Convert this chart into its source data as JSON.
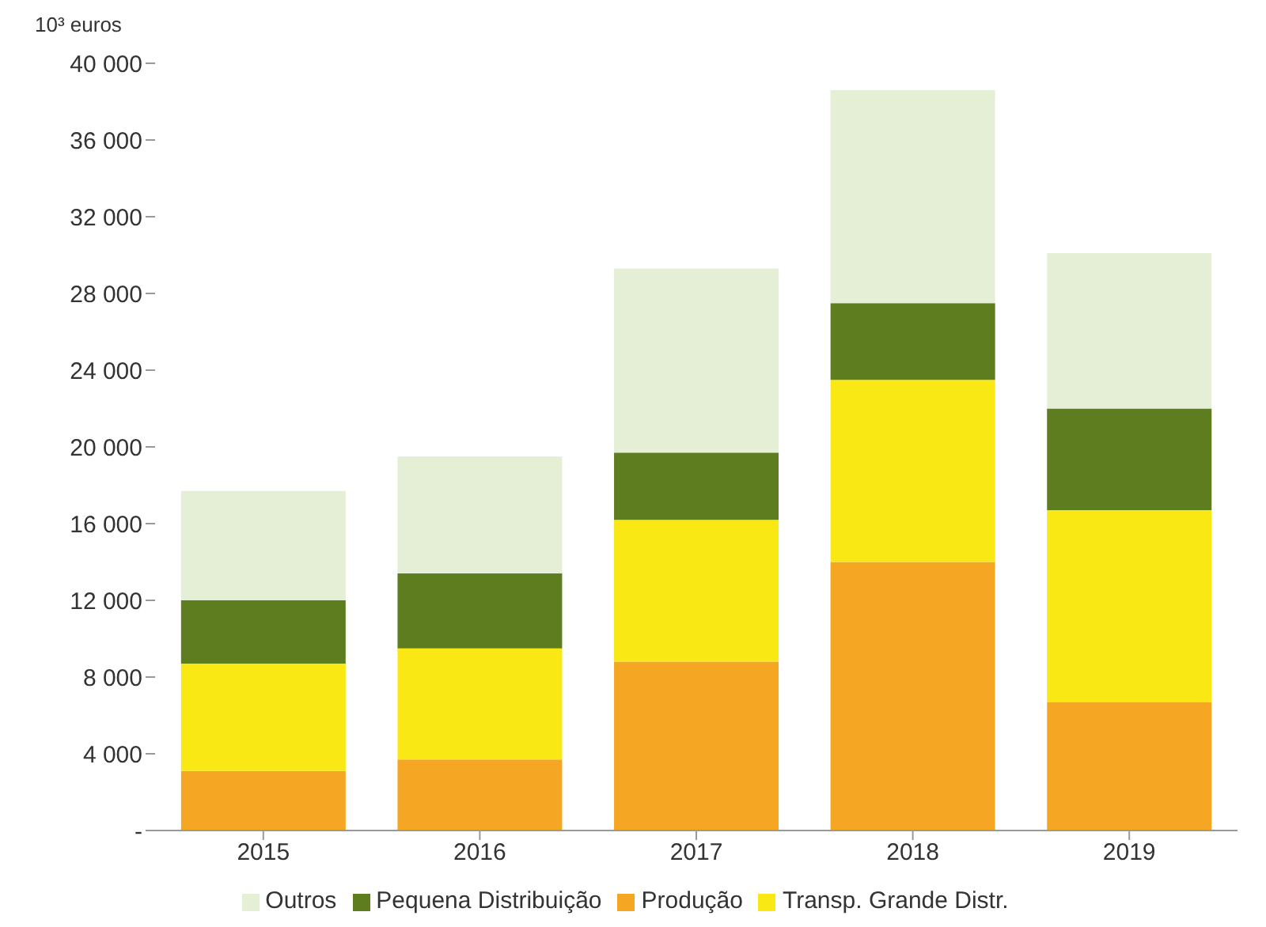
{
  "chart_data": {
    "type": "bar",
    "ylabel": "10³ euros",
    "categories": [
      "2015",
      "2016",
      "2017",
      "2018",
      "2019"
    ],
    "stacked": true,
    "series": [
      {
        "name": "Produção",
        "color": "#f5a623",
        "values": [
          3100,
          3700,
          8800,
          14000,
          6700
        ]
      },
      {
        "name": "Transp. Grande Distr.",
        "color": "#f9e814",
        "values": [
          5600,
          5800,
          7400,
          9500,
          10000
        ]
      },
      {
        "name": "Pequena Distribuição",
        "color": "#5e7d1e",
        "values": [
          3300,
          3900,
          3500,
          4000,
          5300
        ]
      },
      {
        "name": "Outros",
        "color": "#e5efd6",
        "values": [
          5700,
          6100,
          9600,
          11100,
          8100
        ]
      }
    ],
    "ylim": [
      0,
      40000
    ],
    "yticks": [
      {
        "value": 0,
        "label": "-"
      },
      {
        "value": 4000,
        "label": "4 000"
      },
      {
        "value": 8000,
        "label": "8 000"
      },
      {
        "value": 12000,
        "label": "12 000"
      },
      {
        "value": 16000,
        "label": "16 000"
      },
      {
        "value": 20000,
        "label": "20 000"
      },
      {
        "value": 24000,
        "label": "24 000"
      },
      {
        "value": 28000,
        "label": "28 000"
      },
      {
        "value": 32000,
        "label": "32 000"
      },
      {
        "value": 36000,
        "label": "36 000"
      },
      {
        "value": 40000,
        "label": "40 000"
      }
    ],
    "grid": false,
    "legend": "bottom"
  }
}
